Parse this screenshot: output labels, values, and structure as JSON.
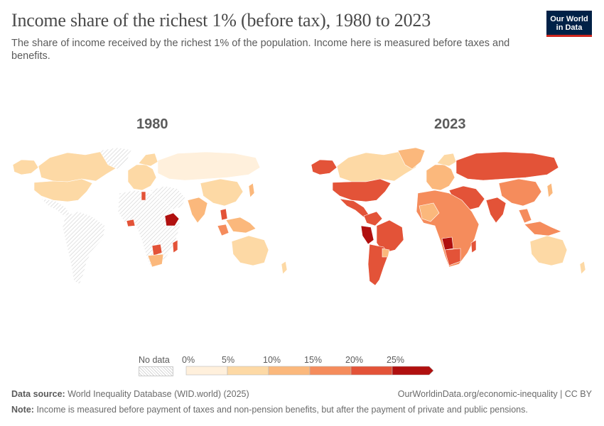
{
  "header": {
    "title": "Income share of the richest 1% (before tax), 1980 to 2023",
    "subtitle": "The share of income received by the richest 1% of the population. Income here is measured before taxes and benefits."
  },
  "logo": {
    "line1": "Our World",
    "line2": "in Data"
  },
  "maps": {
    "left_year": "1980",
    "right_year": "2023"
  },
  "legend": {
    "no_data_label": "No data",
    "ticks": [
      "0%",
      "5%",
      "10%",
      "15%",
      "20%",
      "25%"
    ],
    "colors": [
      "#fff0dc",
      "#fdd9a5",
      "#fbb87c",
      "#f58c5c",
      "#e35338",
      "#b0100f"
    ]
  },
  "footer": {
    "source_label": "Data source:",
    "source_text": "World Inequality Database (WID.world) (2025)",
    "url_text": "OurWorldinData.org/economic-inequality | CC BY",
    "note_label": "Note:",
    "note_text": "Income is measured before payment of taxes and non-pension benefits, but after the payment of private and public pensions."
  }
}
